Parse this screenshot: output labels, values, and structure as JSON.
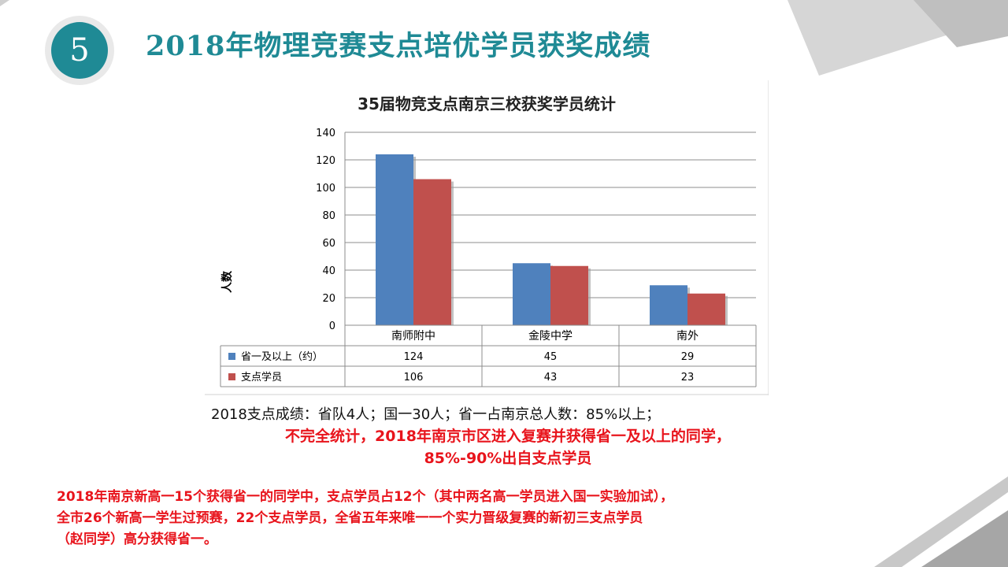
{
  "badge": {
    "number": "5"
  },
  "page_title": "2018年物理竞赛支点培优学员获奖成绩",
  "colors": {
    "accent": "#1f8a95",
    "highlight": "#e8141c",
    "series1": "#4f81bd",
    "series2": "#c0504d"
  },
  "chart_data": {
    "type": "bar",
    "title": "35届物竞支点南京三校获奖学员统计",
    "xlabel": "",
    "ylabel": "人数",
    "ylim": [
      0,
      140
    ],
    "yticks": [
      0,
      20,
      40,
      60,
      80,
      100,
      120,
      140
    ],
    "grid": true,
    "legend": "data-table",
    "categories": [
      "南师附中",
      "金陵中学",
      "南外"
    ],
    "series": [
      {
        "name": "省一及以上（约）",
        "values": [
          124,
          45,
          29
        ],
        "color": "#4f81bd"
      },
      {
        "name": "支点学员",
        "values": [
          106,
          43,
          23
        ],
        "color": "#c0504d"
      }
    ]
  },
  "notes": {
    "summary": "2018支点成绩：省队4人；国一30人；省一占南京总人数：85%以上；",
    "highlight_line1": "不完全统计，2018年南京市区进入复赛并获得省一及以上的同学，",
    "highlight_line2": "85%-90%出自支点学员"
  },
  "paragraph": {
    "line1": "2018年南京新高一15个获得省一的同学中，支点学员占12个（其中两名高一学员进入国一实验加试），",
    "line2": "全市26个新高一学生过预赛，22个支点学员，全省五年来唯一一个实力晋级复赛的新初三支点学员",
    "line3": "（赵同学）高分获得省一。"
  }
}
